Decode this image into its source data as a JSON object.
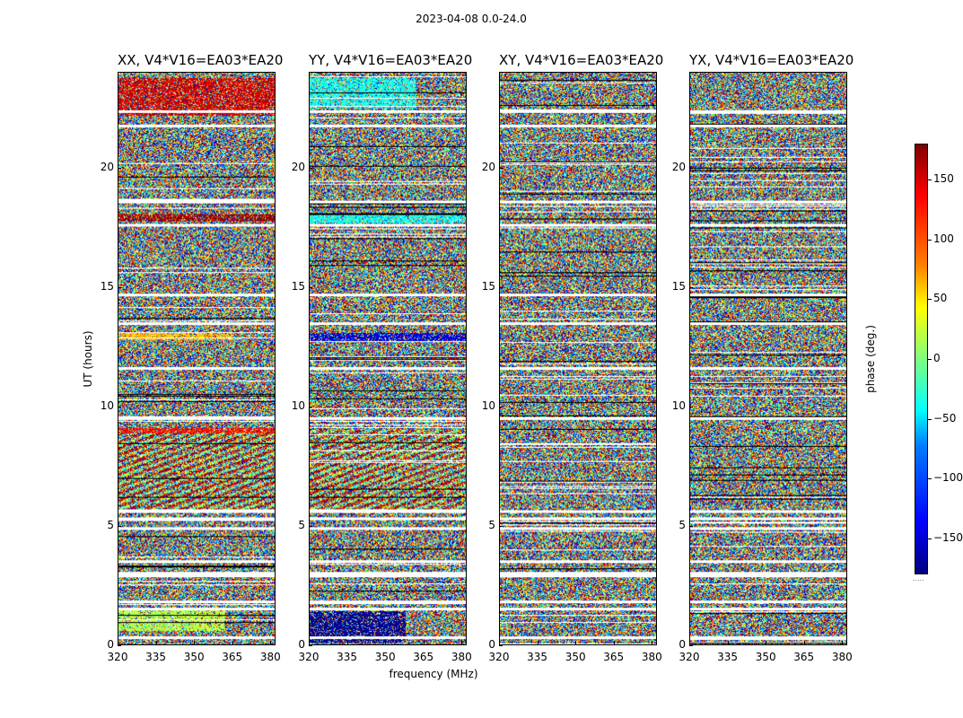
{
  "chart_data": {
    "type": "heatmap",
    "suptitle": "2023-04-08 0.0-24.0",
    "ylabel": "UT (hours)",
    "xlabel": "frequency (MHz)",
    "ylim": [
      0,
      24
    ],
    "xlim": [
      320,
      382
    ],
    "yticks": [
      0,
      5,
      10,
      15,
      20
    ],
    "xticks": [
      320,
      335,
      350,
      365,
      380
    ],
    "colorbar": {
      "label": "phase (deg.)",
      "range": [
        -180,
        180
      ],
      "ticks": [
        150,
        100,
        50,
        0,
        -50,
        -100,
        -150
      ],
      "tick_labels": [
        "150",
        "100",
        "50",
        "0",
        "−50",
        "−100",
        "−150"
      ],
      "colormap": "jet",
      "footnote": "....."
    },
    "panels": [
      {
        "title": "XX, V4*V16=EA03*EA20",
        "polarization": "XX",
        "features": [
          {
            "ut_start": 22.2,
            "ut_end": 23.8,
            "freq_start": 320,
            "freq_end": 382,
            "phase_center": 150,
            "phase_spread": 60
          },
          {
            "ut_start": 17.8,
            "ut_end": 18.1,
            "freq_start": 320,
            "freq_end": 382,
            "phase_center": 170,
            "phase_spread": 20
          },
          {
            "ut_start": 12.8,
            "ut_end": 13.1,
            "freq_start": 320,
            "freq_end": 365,
            "phase_center": 70,
            "phase_spread": 40
          },
          {
            "ut_start": 8.9,
            "ut_end": 9.1,
            "freq_start": 320,
            "freq_end": 382,
            "phase_center": 130,
            "phase_spread": 40
          },
          {
            "ut_start": 0.6,
            "ut_end": 1.5,
            "freq_start": 320,
            "freq_end": 362,
            "phase_center": 20,
            "phase_spread": 40
          }
        ]
      },
      {
        "title": "YY, V4*V16=EA03*EA20",
        "polarization": "YY",
        "features": [
          {
            "ut_start": 22.5,
            "ut_end": 23.8,
            "freq_start": 320,
            "freq_end": 362,
            "phase_center": -40,
            "phase_spread": 30
          },
          {
            "ut_start": 17.7,
            "ut_end": 18.1,
            "freq_start": 320,
            "freq_end": 382,
            "phase_center": -40,
            "phase_spread": 25
          },
          {
            "ut_start": 12.7,
            "ut_end": 13.1,
            "freq_start": 320,
            "freq_end": 382,
            "phase_center": -150,
            "phase_spread": 25
          },
          {
            "ut_start": 0.1,
            "ut_end": 1.4,
            "freq_start": 320,
            "freq_end": 358,
            "phase_center": -175,
            "phase_spread": 20
          }
        ]
      },
      {
        "title": "XY, V4*V16=EA03*EA20",
        "polarization": "XY",
        "features": []
      },
      {
        "title": "YX, V4*V16=EA03*EA20",
        "polarization": "YX",
        "features": []
      }
    ],
    "blank_rows_ut": [
      22.4,
      21.8,
      18.6,
      17.6,
      14.7,
      13.5,
      11.6,
      9.5,
      5.6,
      5.3,
      4.9,
      3.5,
      3.0,
      2.9,
      1.8,
      1.5,
      0.3
    ],
    "fringe_region_ut": [
      5.6,
      9.0
    ]
  }
}
